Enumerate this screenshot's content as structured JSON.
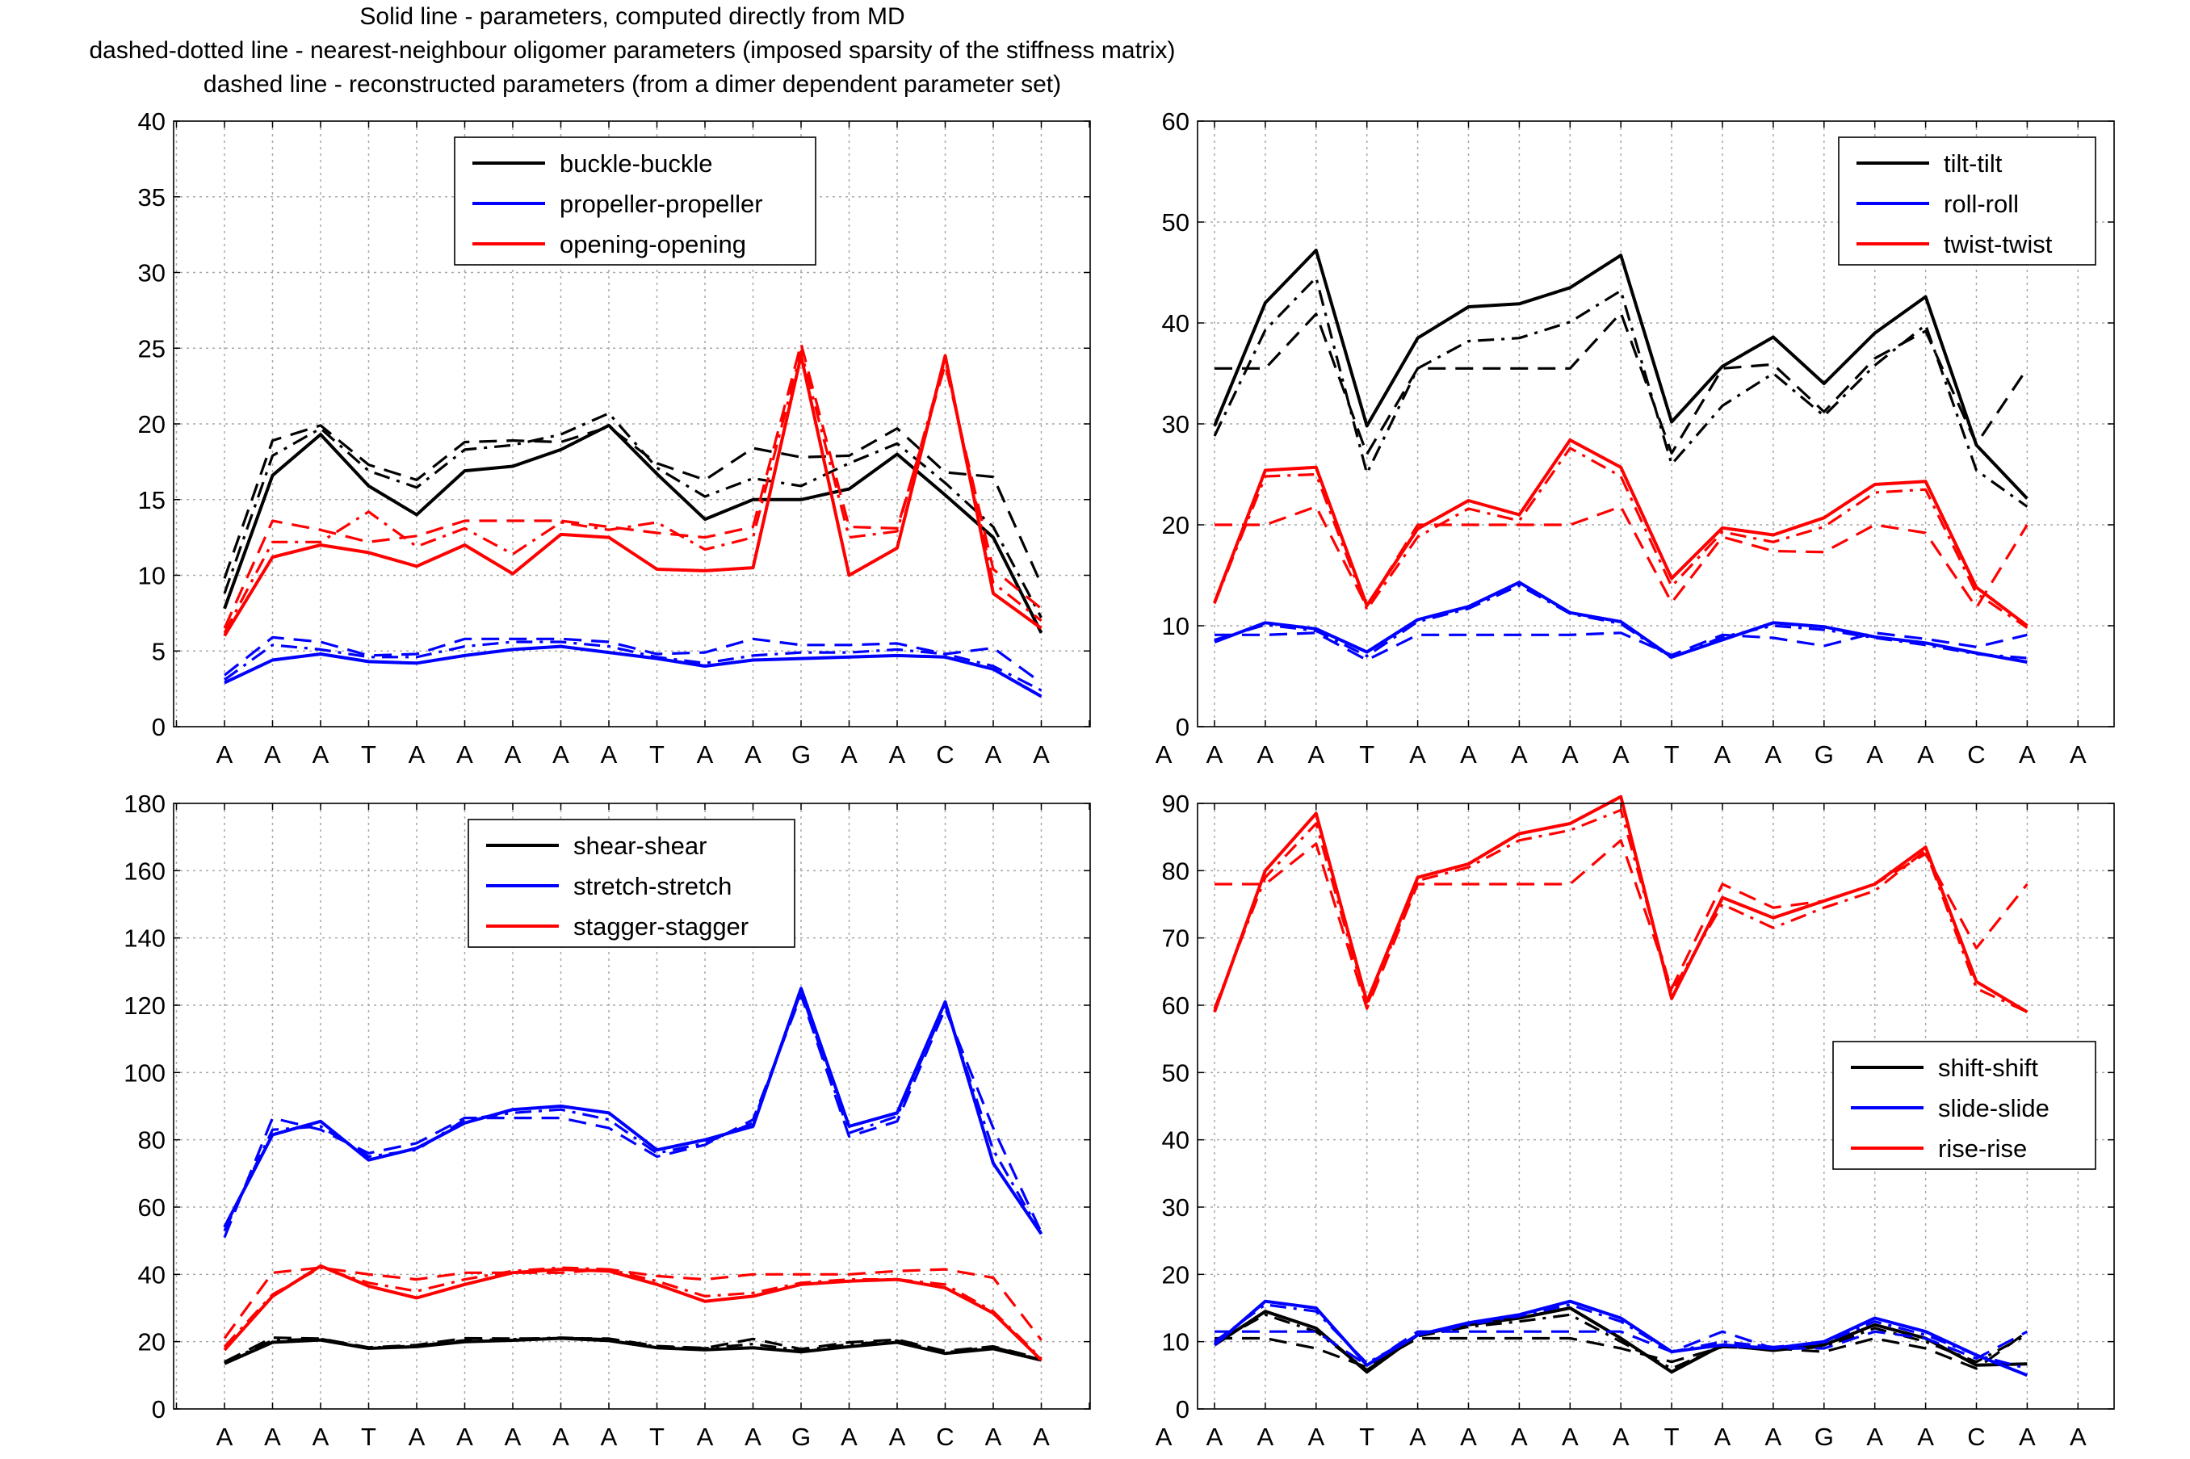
{
  "figure": {
    "title_lines": [
      "Solid line - parameters, computed directly from MD",
      "dashed-dotted line - nearest-neighbour oligomer parameters (imposed sparsity of the stiffness matrix)",
      "dashed line - reconstructed parameters (from a dimer dependent parameter set)"
    ]
  },
  "chart_data": [
    {
      "type": "line",
      "panel": "top-left",
      "categories": [
        "A",
        "A",
        "A",
        "T",
        "A",
        "A",
        "A",
        "A",
        "A",
        "T",
        "A",
        "A",
        "G",
        "A",
        "A",
        "C",
        "A",
        "A"
      ],
      "ylim": [
        0,
        40
      ],
      "yticks": [
        0,
        5,
        10,
        15,
        20,
        25,
        30,
        35,
        40
      ],
      "grid": true,
      "legend_position": "top-center",
      "legend": [
        "buckle-buckle",
        "propeller-propeller",
        "opening-opening"
      ],
      "series": [
        {
          "name": "buckle-buckle",
          "color": "#000000",
          "style": "solid",
          "values": [
            7.8,
            16.6,
            19.3,
            15.9,
            14.0,
            16.9,
            17.2,
            18.3,
            19.9,
            16.7,
            13.7,
            15.0,
            15.0,
            15.7,
            18.0,
            15.3,
            12.5,
            6.2
          ]
        },
        {
          "name": "buckle-buckle",
          "color": "#000000",
          "style": "dashdot",
          "values": [
            8.8,
            17.9,
            19.7,
            16.9,
            15.8,
            18.3,
            18.6,
            19.3,
            20.7,
            17.1,
            15.2,
            16.4,
            15.9,
            17.4,
            18.7,
            16.1,
            13.2,
            7.2
          ]
        },
        {
          "name": "buckle-buckle",
          "color": "#000000",
          "style": "dashed",
          "values": [
            9.8,
            18.9,
            19.9,
            17.3,
            16.3,
            18.8,
            18.9,
            18.8,
            19.8,
            17.4,
            16.3,
            18.4,
            17.8,
            17.9,
            19.7,
            16.8,
            16.5,
            9.4
          ]
        },
        {
          "name": "propeller-propeller",
          "color": "#0000ff",
          "style": "solid",
          "values": [
            2.9,
            4.4,
            4.8,
            4.3,
            4.2,
            4.7,
            5.1,
            5.3,
            4.9,
            4.5,
            4.0,
            4.4,
            4.5,
            4.6,
            4.7,
            4.6,
            3.8,
            2.0
          ]
        },
        {
          "name": "propeller-propeller",
          "color": "#0000ff",
          "style": "dashdot",
          "values": [
            3.1,
            5.4,
            5.1,
            4.6,
            4.6,
            5.3,
            5.6,
            5.6,
            5.3,
            4.6,
            4.2,
            4.7,
            4.9,
            4.9,
            5.1,
            4.8,
            4.0,
            2.4
          ]
        },
        {
          "name": "propeller-propeller",
          "color": "#0000ff",
          "style": "dashed",
          "values": [
            3.4,
            5.9,
            5.6,
            4.7,
            4.8,
            5.8,
            5.8,
            5.8,
            5.6,
            4.8,
            4.9,
            5.8,
            5.4,
            5.4,
            5.5,
            4.8,
            5.2,
            2.9
          ]
        },
        {
          "name": "opening-opening",
          "color": "#ff0000",
          "style": "solid",
          "values": [
            6.0,
            11.2,
            12.0,
            11.5,
            10.6,
            12.0,
            10.1,
            12.7,
            12.5,
            10.4,
            10.3,
            10.5,
            24.5,
            10.0,
            11.8,
            24.5,
            8.8,
            6.5
          ]
        },
        {
          "name": "opening-opening",
          "color": "#ff0000",
          "style": "dashdot",
          "values": [
            6.2,
            12.2,
            12.2,
            14.2,
            11.9,
            13.1,
            11.4,
            13.5,
            13.0,
            13.5,
            11.7,
            12.5,
            24.8,
            12.5,
            12.9,
            24.3,
            9.5,
            7.0
          ]
        },
        {
          "name": "opening-opening",
          "color": "#ff0000",
          "style": "dashed",
          "values": [
            6.5,
            13.6,
            13.0,
            12.2,
            12.6,
            13.6,
            13.6,
            13.6,
            13.2,
            12.8,
            12.5,
            13.2,
            25.3,
            13.2,
            13.1,
            23.9,
            10.4,
            7.8
          ]
        }
      ]
    },
    {
      "type": "line",
      "panel": "top-right",
      "categories": [
        "A",
        "A",
        "A",
        "T",
        "A",
        "A",
        "A",
        "A",
        "A",
        "T",
        "A",
        "A",
        "G",
        "A",
        "A",
        "C",
        "A",
        "A"
      ],
      "ylim": [
        0,
        60
      ],
      "yticks": [
        0,
        10,
        20,
        30,
        40,
        50,
        60
      ],
      "grid": true,
      "legend_position": "top-right",
      "legend": [
        "tilt-tilt",
        "roll-roll",
        "twist-twist"
      ],
      "series": [
        {
          "name": "tilt-tilt",
          "color": "#000000",
          "style": "solid",
          "values": [
            29.8,
            42.0,
            47.2,
            29.8,
            38.5,
            41.6,
            41.9,
            43.5,
            46.7,
            30.2,
            35.7,
            38.6,
            34.0,
            39.0,
            42.6,
            27.9,
            22.6,
            null
          ]
        },
        {
          "name": "tilt-tilt",
          "color": "#000000",
          "style": "dashdot",
          "values": [
            28.8,
            39.3,
            44.5,
            25.1,
            35.5,
            38.2,
            38.5,
            40.1,
            43.2,
            26.0,
            31.8,
            35.0,
            30.8,
            35.8,
            39.8,
            25.4,
            21.8,
            null
          ]
        },
        {
          "name": "tilt-tilt",
          "color": "#000000",
          "style": "dashed",
          "values": [
            35.5,
            35.5,
            40.9,
            27.0,
            35.5,
            35.5,
            35.5,
            35.5,
            41.0,
            27.1,
            35.5,
            35.9,
            31.2,
            36.5,
            39.2,
            28.0,
            35.5,
            null
          ]
        },
        {
          "name": "roll-roll",
          "color": "#0000ff",
          "style": "solid",
          "values": [
            8.4,
            10.3,
            9.7,
            7.4,
            10.6,
            11.9,
            14.3,
            11.3,
            10.4,
            6.9,
            8.6,
            10.3,
            9.9,
            8.9,
            8.3,
            7.3,
            6.4,
            null
          ]
        },
        {
          "name": "roll-roll",
          "color": "#0000ff",
          "style": "dashdot",
          "values": [
            8.6,
            10.1,
            9.5,
            7.0,
            10.4,
            11.7,
            14.0,
            11.2,
            10.2,
            6.8,
            8.9,
            10.0,
            9.6,
            8.8,
            8.1,
            7.2,
            6.8,
            null
          ]
        },
        {
          "name": "roll-roll",
          "color": "#0000ff",
          "style": "dashed",
          "values": [
            9.1,
            9.1,
            9.3,
            6.6,
            9.1,
            9.1,
            9.1,
            9.1,
            9.3,
            7.1,
            9.1,
            8.8,
            8.0,
            9.3,
            8.7,
            7.9,
            9.1,
            null
          ]
        },
        {
          "name": "twist-twist",
          "color": "#ff0000",
          "style": "solid",
          "values": [
            12.3,
            25.4,
            25.7,
            12.0,
            19.6,
            22.4,
            21.0,
            28.4,
            25.7,
            14.7,
            19.7,
            19.0,
            20.7,
            24.0,
            24.3,
            13.8,
            10.0,
            null
          ]
        },
        {
          "name": "twist-twist",
          "color": "#ff0000",
          "style": "dashdot",
          "values": [
            12.2,
            24.8,
            25.0,
            11.6,
            18.8,
            21.6,
            20.4,
            27.6,
            24.8,
            13.9,
            19.3,
            18.3,
            19.8,
            23.2,
            23.5,
            13.2,
            9.8,
            null
          ]
        },
        {
          "name": "twist-twist",
          "color": "#ff0000",
          "style": "dashed",
          "values": [
            20.0,
            20.0,
            21.8,
            11.9,
            20.0,
            20.0,
            20.0,
            20.0,
            21.8,
            12.3,
            18.8,
            17.4,
            17.3,
            20.0,
            19.2,
            11.8,
            20.0,
            null
          ]
        }
      ]
    },
    {
      "type": "line",
      "panel": "bottom-left",
      "categories": [
        "A",
        "A",
        "A",
        "T",
        "A",
        "A",
        "A",
        "A",
        "A",
        "T",
        "A",
        "A",
        "G",
        "A",
        "A",
        "C",
        "A",
        "A"
      ],
      "ylim": [
        0,
        180
      ],
      "yticks": [
        0,
        20,
        40,
        60,
        80,
        100,
        120,
        140,
        160,
        180
      ],
      "grid": true,
      "legend_position": "top-center",
      "legend": [
        "shear-shear",
        "stretch-stretch",
        "stagger-stagger"
      ],
      "series": [
        {
          "name": "shear-shear",
          "color": "#000000",
          "style": "solid",
          "values": [
            13.5,
            19.8,
            20.5,
            18.0,
            18.5,
            20.0,
            20.4,
            21.0,
            20.3,
            18.2,
            17.6,
            18.2,
            17.0,
            18.5,
            19.8,
            16.5,
            17.9,
            14.5
          ]
        },
        {
          "name": "shear-shear",
          "color": "#000000",
          "style": "dashdot",
          "values": [
            13.8,
            20.4,
            20.8,
            18.2,
            18.8,
            20.4,
            20.7,
            21.2,
            20.7,
            18.5,
            18.0,
            19.3,
            17.4,
            19.2,
            20.3,
            16.8,
            18.4,
            14.6
          ]
        },
        {
          "name": "shear-shear",
          "color": "#000000",
          "style": "dashed",
          "values": [
            14.0,
            21.2,
            20.9,
            18.3,
            19.0,
            21.0,
            20.9,
            21.0,
            20.9,
            18.7,
            18.1,
            20.8,
            17.8,
            19.8,
            20.6,
            17.2,
            18.6,
            14.9
          ]
        },
        {
          "name": "stretch-stretch",
          "color": "#0000ff",
          "style": "solid",
          "values": [
            54.0,
            81.5,
            85.5,
            74.0,
            77.5,
            85.0,
            89.0,
            90.0,
            88.0,
            77.0,
            80.0,
            84.0,
            125.0,
            84.0,
            88.0,
            121.0,
            73.0,
            52.0
          ]
        },
        {
          "name": "stretch-stretch",
          "color": "#0000ff",
          "style": "dashdot",
          "values": [
            53.0,
            83.0,
            84.0,
            75.0,
            77.0,
            86.0,
            88.0,
            89.0,
            86.0,
            76.0,
            79.0,
            85.0,
            124.0,
            82.0,
            87.0,
            120.0,
            77.0,
            52.0
          ]
        },
        {
          "name": "stretch-stretch",
          "color": "#0000ff",
          "style": "dashed",
          "values": [
            51.0,
            86.5,
            83.0,
            76.0,
            79.0,
            86.5,
            86.5,
            86.5,
            83.5,
            75.0,
            78.5,
            86.0,
            123.0,
            81.0,
            85.5,
            119.0,
            83.5,
            52.5
          ]
        },
        {
          "name": "stagger-stagger",
          "color": "#ff0000",
          "style": "solid",
          "values": [
            17.5,
            33.5,
            42.5,
            36.5,
            33.0,
            37.0,
            40.5,
            41.5,
            41.0,
            37.0,
            32.0,
            33.5,
            37.0,
            38.0,
            38.5,
            36.0,
            28.5,
            14.5
          ]
        },
        {
          "name": "stagger-stagger",
          "color": "#ff0000",
          "style": "dashdot",
          "values": [
            18.5,
            34.0,
            42.0,
            37.5,
            35.0,
            38.5,
            41.0,
            42.0,
            41.5,
            38.0,
            33.5,
            34.5,
            37.5,
            38.5,
            38.5,
            37.0,
            29.0,
            15.0
          ]
        },
        {
          "name": "stagger-stagger",
          "color": "#ff0000",
          "style": "dashed",
          "values": [
            21.0,
            40.5,
            42.0,
            40.0,
            38.5,
            40.5,
            40.5,
            40.5,
            41.5,
            39.5,
            38.5,
            40.0,
            40.0,
            40.0,
            41.0,
            41.5,
            39.0,
            20.5
          ]
        }
      ]
    },
    {
      "type": "line",
      "panel": "bottom-right",
      "categories": [
        "A",
        "A",
        "A",
        "T",
        "A",
        "A",
        "A",
        "A",
        "A",
        "T",
        "A",
        "A",
        "G",
        "A",
        "A",
        "C",
        "A",
        "A"
      ],
      "ylim": [
        0,
        90
      ],
      "yticks": [
        0,
        10,
        20,
        30,
        40,
        50,
        60,
        70,
        80,
        90
      ],
      "grid": true,
      "legend_position": "center-right",
      "legend": [
        "shift-shift",
        "slide-slide",
        "rise-rise"
      ],
      "series": [
        {
          "name": "shift-shift",
          "color": "#000000",
          "style": "solid",
          "values": [
            9.5,
            14.5,
            12.0,
            5.5,
            11.0,
            12.5,
            13.5,
            15.0,
            10.5,
            5.5,
            9.5,
            8.7,
            9.5,
            12.5,
            10.5,
            6.5,
            6.7,
            null
          ]
        },
        {
          "name": "shift-shift",
          "color": "#000000",
          "style": "dashdot",
          "values": [
            9.8,
            14.0,
            11.5,
            5.8,
            10.8,
            12.2,
            13.0,
            14.0,
            10.0,
            6.0,
            9.3,
            8.8,
            9.2,
            12.0,
            10.0,
            7.0,
            11.0,
            null
          ]
        },
        {
          "name": "shift-shift",
          "color": "#000000",
          "style": "dashed",
          "values": [
            10.5,
            10.5,
            9.0,
            6.2,
            10.5,
            10.5,
            10.5,
            10.5,
            9.0,
            7.0,
            9.2,
            9.0,
            8.5,
            10.5,
            9.0,
            6.0,
            11.5,
            null
          ]
        },
        {
          "name": "slide-slide",
          "color": "#0000ff",
          "style": "solid",
          "values": [
            9.5,
            16.0,
            15.0,
            6.5,
            11.0,
            12.8,
            14.0,
            16.0,
            13.5,
            8.5,
            9.5,
            9.0,
            10.0,
            13.5,
            11.5,
            8.0,
            5.0,
            null
          ]
        },
        {
          "name": "slide-slide",
          "color": "#0000ff",
          "style": "dashdot",
          "values": [
            10.0,
            15.5,
            14.5,
            6.8,
            11.0,
            12.5,
            13.8,
            15.5,
            13.0,
            8.5,
            10.0,
            9.2,
            9.8,
            13.0,
            11.0,
            8.0,
            6.0,
            null
          ]
        },
        {
          "name": "slide-slide",
          "color": "#0000ff",
          "style": "dashed",
          "values": [
            11.5,
            11.5,
            11.5,
            6.5,
            11.5,
            11.5,
            11.5,
            11.5,
            11.5,
            8.5,
            11.5,
            9.0,
            9.0,
            11.5,
            10.5,
            7.5,
            11.5,
            null
          ]
        },
        {
          "name": "rise-rise",
          "color": "#ff0000",
          "style": "solid",
          "values": [
            59.0,
            80.0,
            88.5,
            60.5,
            79.0,
            81.0,
            85.5,
            87.0,
            91.0,
            61.0,
            76.0,
            73.0,
            75.5,
            78.0,
            83.5,
            63.5,
            59.0,
            null
          ]
        },
        {
          "name": "rise-rise",
          "color": "#ff0000",
          "style": "dashdot",
          "values": [
            59.5,
            79.0,
            87.0,
            60.0,
            78.5,
            80.5,
            84.5,
            86.0,
            89.0,
            62.0,
            75.0,
            71.5,
            74.5,
            77.0,
            83.0,
            62.5,
            59.0,
            null
          ]
        },
        {
          "name": "rise-rise",
          "color": "#ff0000",
          "style": "dashed",
          "values": [
            78.0,
            78.0,
            84.0,
            59.5,
            78.0,
            78.0,
            78.0,
            78.0,
            84.5,
            62.5,
            78.0,
            74.5,
            75.5,
            78.0,
            82.5,
            68.5,
            78.0,
            null
          ]
        }
      ]
    }
  ]
}
